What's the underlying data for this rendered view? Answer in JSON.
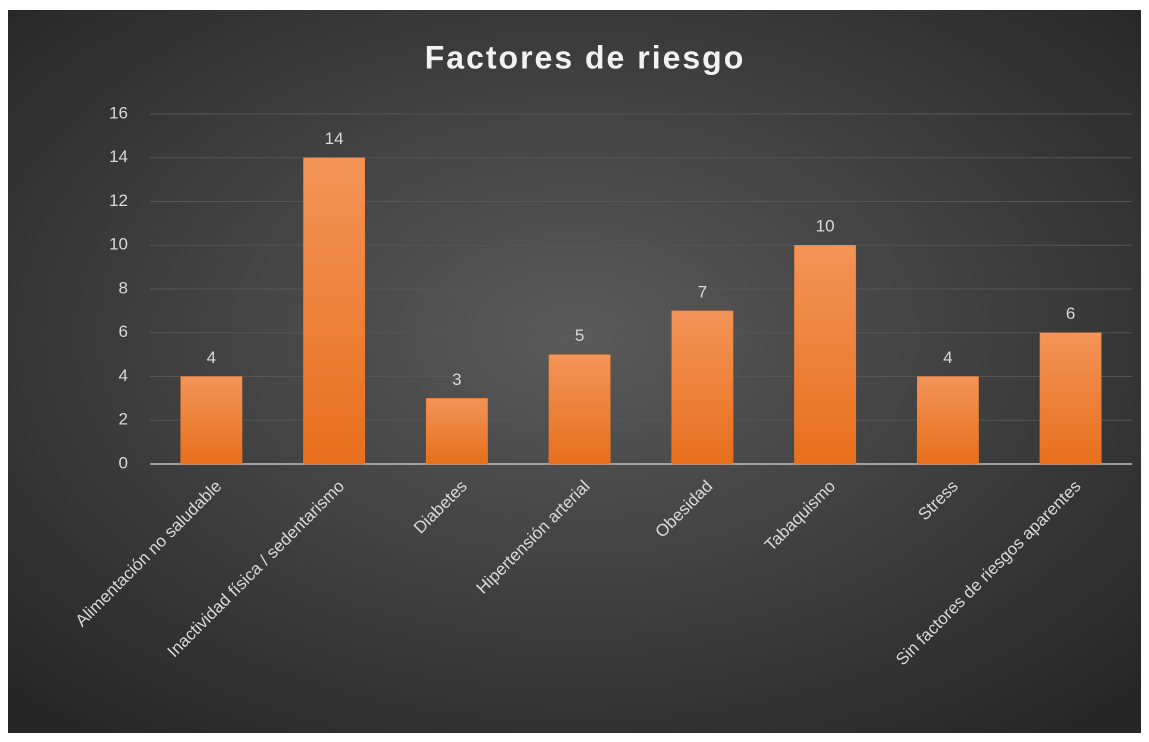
{
  "chart_data": {
    "type": "bar",
    "title": "Factores de riesgo",
    "categories": [
      "Alimentación no saludable",
      "Inactividad física / sedentarismo",
      "Diabetes",
      "Hipertensión arterial",
      "Obesidad",
      "Tabaquismo",
      "Stress",
      "Sin factores de riesgos aparentes"
    ],
    "values": [
      4,
      14,
      3,
      5,
      7,
      10,
      4,
      6
    ],
    "color": "#ed7d31",
    "ylim": [
      0,
      16
    ],
    "yticks": [
      0,
      2,
      4,
      6,
      8,
      10,
      12,
      14,
      16
    ],
    "grid": true
  }
}
